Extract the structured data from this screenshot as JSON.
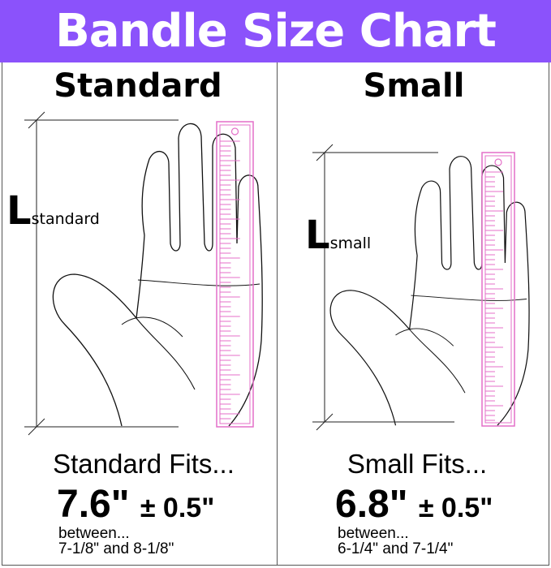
{
  "title": "Bandle Size Chart",
  "colors": {
    "header_bg": "#8b52fb",
    "ruler": "#e46fc8"
  },
  "panels": [
    {
      "name": "Standard",
      "label_main": "L",
      "label_sub": "standard",
      "fits": "Standard Fits...",
      "measure": "7.6\"",
      "tolerance": "± 0.5\"",
      "between": "between...",
      "range": "7-1/8\" and 8-1/8\""
    },
    {
      "name": "Small",
      "label_main": "L",
      "label_sub": "small",
      "fits": "Small Fits...",
      "measure": "6.8\"",
      "tolerance": "± 0.5\"",
      "between": "between...",
      "range": "6-1/4\" and 7-1/4\""
    }
  ]
}
